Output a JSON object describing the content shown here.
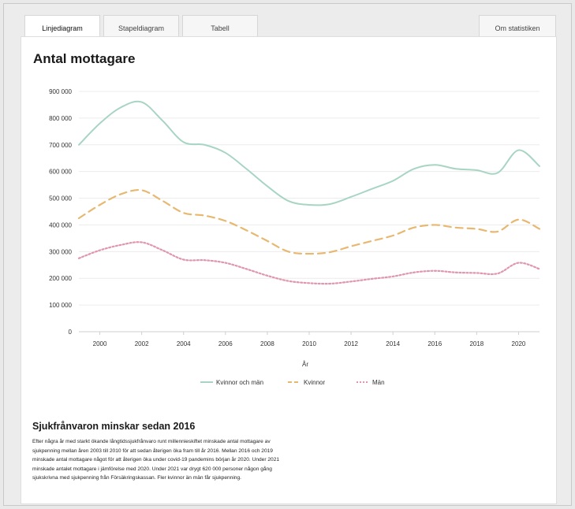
{
  "tabs": [
    {
      "label": "Linjediagram",
      "active": true
    },
    {
      "label": "Stapeldiagram",
      "active": false
    },
    {
      "label": "Tabell",
      "active": false
    }
  ],
  "about_button": {
    "label": "Om statistiken"
  },
  "accent_color": "#2a64c5",
  "chart": {
    "title": "Antal mottagare"
  },
  "chart_data": {
    "type": "line",
    "title": "Antal mottagare",
    "xlabel": "År",
    "ylabel": "",
    "x": [
      1999,
      2000,
      2001,
      2002,
      2003,
      2004,
      2005,
      2006,
      2007,
      2008,
      2009,
      2010,
      2011,
      2012,
      2013,
      2014,
      2015,
      2016,
      2017,
      2018,
      2019,
      2020,
      2021
    ],
    "xlim": [
      1999,
      2021
    ],
    "xticks": [
      2000,
      2002,
      2004,
      2006,
      2008,
      2010,
      2012,
      2014,
      2016,
      2018,
      2020
    ],
    "ylim": [
      0,
      900000
    ],
    "yticks": [
      0,
      100000,
      200000,
      300000,
      400000,
      500000,
      600000,
      700000,
      800000,
      900000
    ],
    "ytick_labels": [
      "0",
      "100 000",
      "200 000",
      "300 000",
      "400 000",
      "500 000",
      "600 000",
      "700 000",
      "800 000",
      "900 000"
    ],
    "xtick_labels": [
      "2000",
      "2002",
      "2004",
      "2006",
      "2008",
      "2010",
      "2012",
      "2014",
      "2016",
      "2018",
      "2020"
    ],
    "grid": "horizontal",
    "legend": "bottom-center",
    "series": [
      {
        "name": "Kvinnor och män",
        "color": "#a8d5c3",
        "dash": "solid",
        "values": [
          700000,
          780000,
          840000,
          860000,
          790000,
          710000,
          700000,
          670000,
          610000,
          545000,
          490000,
          475000,
          478000,
          505000,
          535000,
          565000,
          610000,
          625000,
          610000,
          605000,
          595000,
          680000,
          620000
        ]
      },
      {
        "name": "Kvinnor",
        "color": "#e8b871",
        "dash": "dashed",
        "values": [
          425000,
          475000,
          515000,
          530000,
          490000,
          445000,
          435000,
          415000,
          380000,
          340000,
          300000,
          292000,
          298000,
          320000,
          340000,
          360000,
          390000,
          400000,
          390000,
          385000,
          375000,
          420000,
          385000
        ]
      },
      {
        "name": "Män",
        "color": "#e096ad",
        "dash": "dotted",
        "values": [
          275000,
          305000,
          325000,
          335000,
          305000,
          270000,
          268000,
          258000,
          235000,
          210000,
          190000,
          182000,
          180000,
          188000,
          198000,
          207000,
          222000,
          228000,
          222000,
          220000,
          218000,
          258000,
          235000
        ]
      }
    ]
  },
  "article": {
    "heading": "Sjukfrånvaron minskar sedan 2016",
    "lines": [
      "Efter några år med starkt ökande långtidssjukfrånvaro runt millennieskiftet minskade antal mottagare av",
      "sjukpenning mellan åren 2003 till 2010 för att sedan återigen öka fram till år 2016. Mellan 2016 och 2019",
      "minskade antal mottagare något för att återigen öka under covid-19 pandemins början år 2020. Under 2021",
      "minskade antalet mottagare i jämförelse med 2020. Under 2021 var drygt 620 000 personer någon gång",
      "sjukskrivna med sjukpenning från Försäkringskassan. Fler kvinnor än män får sjukpenning."
    ]
  }
}
